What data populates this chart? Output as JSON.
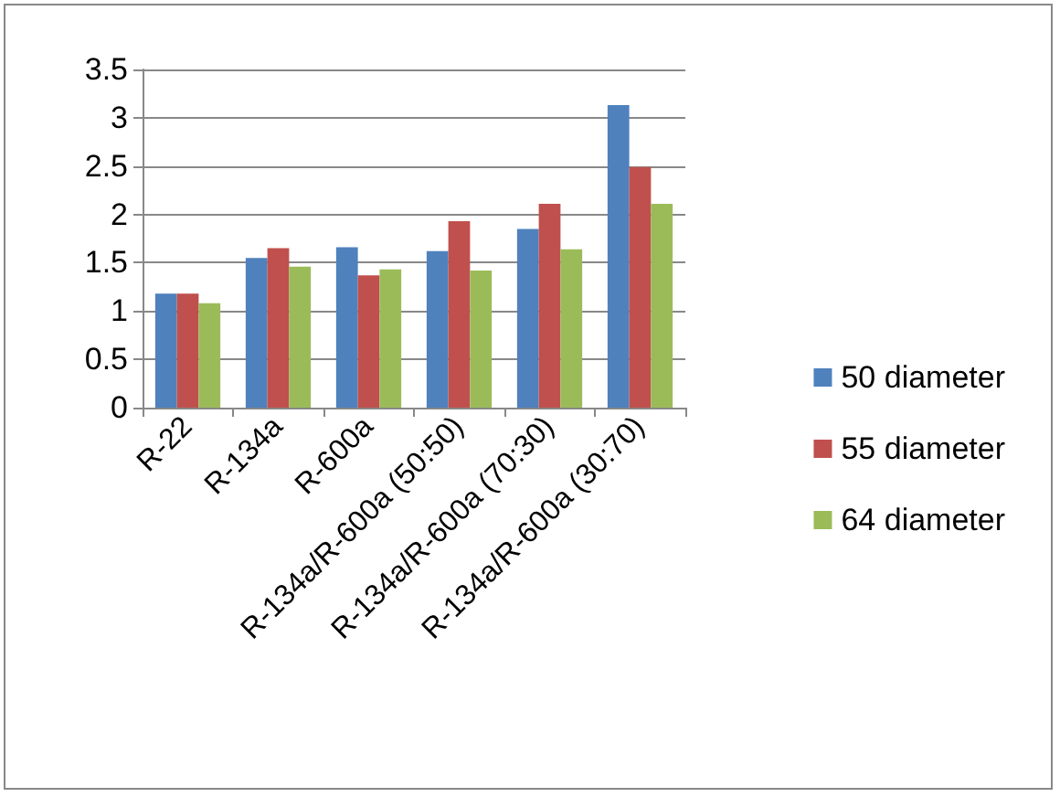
{
  "chart_data": {
    "type": "bar",
    "categories": [
      "R-22",
      "R-134a",
      "R-600a",
      "R-134a/R-600a (50:50)",
      "R-134a/R-600a (70:30)",
      "R-134a/R-600a (30:70)"
    ],
    "series": [
      {
        "name": "50 diameter",
        "color": "#4f81bd",
        "values": [
          1.18,
          1.55,
          1.66,
          1.62,
          1.85,
          3.13
        ]
      },
      {
        "name": "55 diameter",
        "color": "#c0504d",
        "values": [
          1.18,
          1.65,
          1.37,
          1.93,
          2.11,
          2.49
        ]
      },
      {
        "name": "64 diameter",
        "color": "#9bbb59",
        "values": [
          1.08,
          1.46,
          1.43,
          1.42,
          1.64,
          2.11
        ]
      }
    ],
    "ylim": [
      0,
      3.5
    ],
    "yticks": [
      0,
      0.5,
      1,
      1.5,
      2,
      2.5,
      3,
      3.5
    ],
    "grid": "y",
    "legend": "right"
  }
}
